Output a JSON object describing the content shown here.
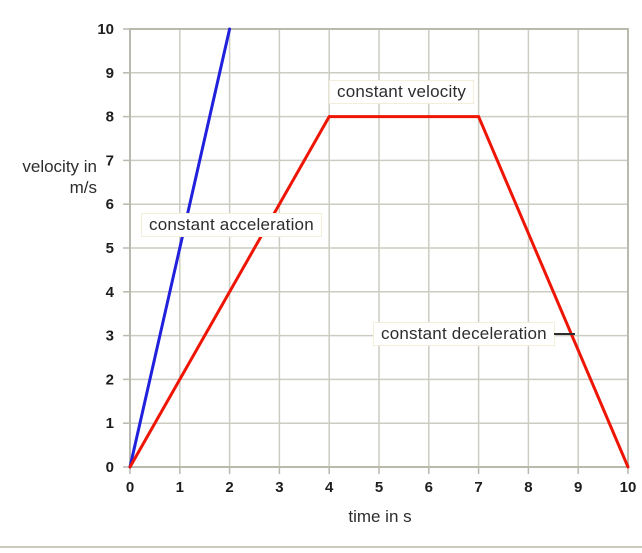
{
  "colors": {
    "grid": "#ccccc2",
    "frame": "#b9b9ae",
    "tick_text": "#1d1d1d",
    "label_text": "#2d2d2d",
    "divider": "#cccabf",
    "blue_line": "#2020dd",
    "red_line": "#ee1505"
  },
  "chart_data": {
    "type": "line",
    "title": "",
    "xlabel": "time in s",
    "ylabel_lines": [
      "velocity in",
      "m/s"
    ],
    "xlim": [
      0,
      10
    ],
    "ylim": [
      0,
      10
    ],
    "xticks": [
      0,
      1,
      2,
      3,
      4,
      5,
      6,
      7,
      8,
      9,
      10
    ],
    "yticks": [
      0,
      1,
      2,
      3,
      4,
      5,
      6,
      7,
      8,
      9,
      10
    ],
    "grid": true,
    "legend": "none",
    "series": [
      {
        "name": "constant-acceleration-steep-line",
        "color": "#2020dd",
        "points": [
          [
            0,
            0
          ],
          [
            2,
            10
          ]
        ]
      },
      {
        "name": "trapezoid-motion-line",
        "color": "#ee1505",
        "points": [
          [
            0,
            0
          ],
          [
            4,
            8
          ],
          [
            7,
            8
          ],
          [
            10,
            0
          ]
        ]
      }
    ],
    "annotations": [
      {
        "id": "constant-acceleration",
        "text": "constant acceleration"
      },
      {
        "id": "constant-velocity",
        "text": "constant velocity"
      },
      {
        "id": "constant-deceleration",
        "text": "constant deceleration",
        "leader": true
      }
    ]
  }
}
